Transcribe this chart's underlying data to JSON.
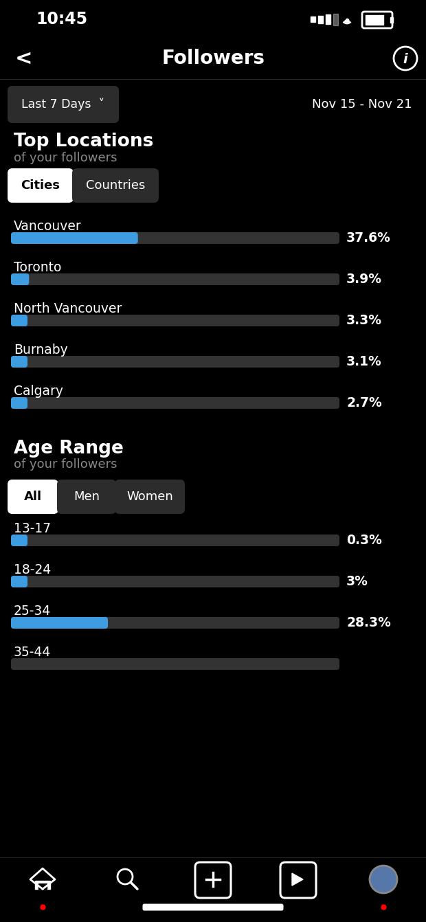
{
  "bg_color": "#000000",
  "status_time": "10:45",
  "nav_title": "Followers",
  "date_range": "Nov 15 - Nov 21",
  "last7days": "Last 7 Days  ˅",
  "top_locations_title": "Top Locations",
  "top_locations_sub": "of your followers",
  "tab1_active": "Cities",
  "tab1_inactive": "Countries",
  "cities": [
    "Vancouver",
    "Toronto",
    "North Vancouver",
    "Burnaby",
    "Calgary"
  ],
  "city_values": [
    37.6,
    3.9,
    3.3,
    3.1,
    2.7
  ],
  "city_labels": [
    "37.6%",
    "3.9%",
    "3.3%",
    "3.1%",
    "2.7%"
  ],
  "age_range_title": "Age Range",
  "age_range_sub": "of your followers",
  "tab2_active": "All",
  "tab2_b": "Men",
  "tab2_c": "Women",
  "age_groups": [
    "13-17",
    "18-24",
    "25-34",
    "35-44"
  ],
  "age_values": [
    0.3,
    3.0,
    28.3,
    null
  ],
  "age_labels": [
    "0.3%",
    "3%",
    "28.3%",
    ""
  ],
  "bar_bg_color": "#333333",
  "bar_fill_color": "#3d9de0",
  "white": "#ffffff",
  "gray_text": "#888888",
  "dark_btn": "#2c2c2c",
  "active_btn_bg": "#ffffff",
  "active_btn_text": "#000000"
}
